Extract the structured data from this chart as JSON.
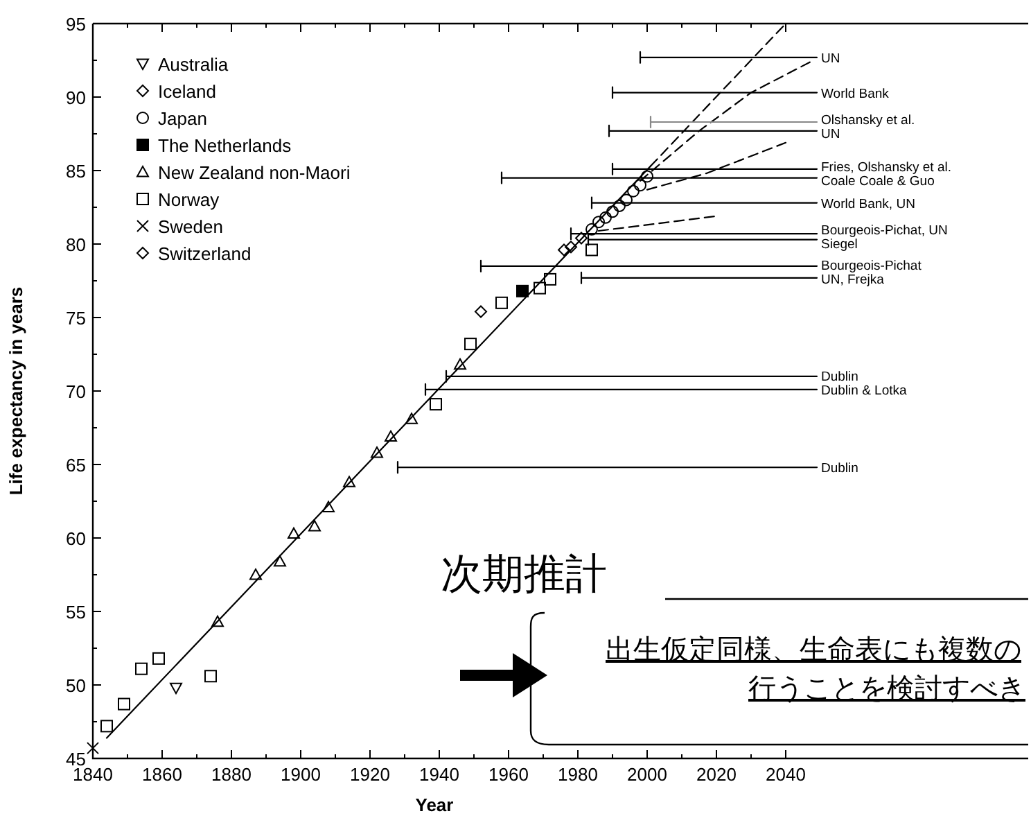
{
  "chart_data": {
    "type": "scatter",
    "xlabel": "Year",
    "ylabel": "Life expectancy in years",
    "xlim": [
      1840,
      2110
    ],
    "ylim": [
      45,
      95
    ],
    "xticks": [
      1840,
      {
        "value": 1850,
        "label": null
      },
      1860,
      {
        "value": 1870,
        "label": null
      },
      1880,
      {
        "value": 1890,
        "label": null
      },
      1900,
      {
        "value": 1910,
        "label": null
      },
      1920,
      {
        "value": 1930,
        "label": null
      },
      1940,
      {
        "value": 1950,
        "label": null
      },
      1960,
      {
        "value": 1970,
        "label": null
      },
      1980,
      {
        "value": 1990,
        "label": null
      },
      2000,
      {
        "value": 2010,
        "label": null
      },
      2020,
      {
        "value": 2030,
        "label": null
      },
      2040
    ],
    "yticks": [
      45,
      {
        "value": 47.5,
        "label": null
      },
      50,
      {
        "value": 52.5,
        "label": null
      },
      55,
      {
        "value": 57.5,
        "label": null
      },
      60,
      {
        "value": 62.5,
        "label": null
      },
      65,
      {
        "value": 67.5,
        "label": null
      },
      70,
      {
        "value": 72.5,
        "label": null
      },
      75,
      {
        "value": 77.5,
        "label": null
      },
      80,
      {
        "value": 82.5,
        "label": null
      },
      85,
      {
        "value": 87.5,
        "label": null
      },
      90,
      {
        "value": 92.5,
        "label": null
      },
      95
    ],
    "grid": false,
    "legend": "top left",
    "series": [
      {
        "name": "Australia",
        "marker": "triangle-down",
        "color": "#000000",
        "x": [
          1864
        ],
        "values": [
          49.8
        ]
      },
      {
        "name": "Iceland",
        "marker": "diamond",
        "color": "#000000",
        "x": [
          1952,
          1978
        ],
        "values": [
          75.4,
          79.8
        ]
      },
      {
        "name": "Japan",
        "marker": "circle",
        "color": "#000000",
        "x": [
          1984,
          1986,
          1988,
          1990,
          1992,
          1994,
          1996,
          1998,
          2000
        ],
        "values": [
          81.0,
          81.5,
          81.8,
          82.2,
          82.6,
          83.0,
          83.6,
          84.0,
          84.6
        ]
      },
      {
        "name": "The Netherlands",
        "marker": "square-filled",
        "color": "#000000",
        "x": [
          1964
        ],
        "values": [
          76.8
        ]
      },
      {
        "name": "New Zealand non-Maori",
        "marker": "triangle",
        "color": "#000000",
        "x": [
          1876,
          1887,
          1894,
          1898,
          1904,
          1908,
          1914,
          1922,
          1926,
          1932,
          1946
        ],
        "values": [
          54.3,
          57.5,
          58.4,
          60.3,
          60.8,
          62.1,
          63.8,
          65.8,
          66.9,
          68.1,
          71.8
        ]
      },
      {
        "name": "Norway",
        "marker": "square",
        "color": "#000000",
        "x": [
          1844,
          1849,
          1854,
          1859,
          1874,
          1939,
          1949,
          1958,
          1969,
          1972,
          1984
        ],
        "values": [
          47.2,
          48.7,
          51.1,
          51.8,
          50.6,
          69.1,
          73.2,
          76.0,
          77.0,
          77.6,
          79.6
        ]
      },
      {
        "name": "Sweden",
        "marker": "cross",
        "color": "#000000",
        "x": [
          1840
        ],
        "values": [
          45.7
        ]
      },
      {
        "name": "Switzerland",
        "marker": "diamond",
        "color": "#000000",
        "x": [
          1976,
          1981
        ],
        "values": [
          79.6,
          80.4
        ]
      },
      {
        "type": "line",
        "marker": "none",
        "line_style": "solid",
        "color": "#000000",
        "x": [
          1844,
          2001
        ],
        "values": [
          46.4,
          85.3
        ]
      },
      {
        "type": "line",
        "marker": "none",
        "line_style": "dashed",
        "color": "#000000",
        "x": [
          2001,
          2040
        ],
        "values": [
          85.3,
          95
        ]
      },
      {
        "type": "line",
        "marker": "none",
        "line_style": "dashed",
        "color": "#000000",
        "x": [
          1998,
          2015,
          2030,
          2048
        ],
        "values": [
          84.3,
          87.7,
          90.3,
          92.5
        ]
      },
      {
        "type": "line",
        "marker": "none",
        "line_style": "dashed",
        "color": "#000000",
        "x": [
          2000,
          2017,
          2040
        ],
        "values": [
          83.7,
          84.8,
          86.9
        ]
      },
      {
        "type": "line",
        "marker": "none",
        "line_style": "dashed",
        "color": "#000000",
        "x": [
          1986,
          2020
        ],
        "values": [
          80.9,
          81.9
        ]
      },
      {
        "name": "UN",
        "type": "line",
        "marker": "none",
        "line_style": "solid",
        "color": "#000000",
        "x": [
          1998,
          2049
        ],
        "values": [
          92.7,
          92.7
        ]
      },
      {
        "name": "World Bank",
        "type": "line",
        "marker": "none",
        "line_style": "solid",
        "color": "#000000",
        "x": [
          1990,
          2049
        ],
        "values": [
          90.3,
          90.3
        ]
      },
      {
        "name": "Olshansky et al.",
        "type": "line",
        "marker": "none",
        "line_style": "solid",
        "color": "#888888",
        "x": [
          2001,
          2049
        ],
        "values": [
          88.3,
          88.3
        ]
      },
      {
        "name": "UN",
        "type": "line",
        "marker": "none",
        "line_style": "solid",
        "color": "#000000",
        "x": [
          1989,
          2049
        ],
        "values": [
          87.7,
          87.7
        ]
      },
      {
        "name": "Fries, Olshansky et al.",
        "type": "line",
        "marker": "none",
        "line_style": "solid",
        "color": "#000000",
        "x": [
          1990,
          2049
        ],
        "values": [
          85.1,
          85.1
        ]
      },
      {
        "name": "Coale   Coale & Guo",
        "type": "line",
        "marker": "none",
        "line_style": "solid",
        "color": "#000000",
        "x": [
          1958,
          2049
        ],
        "values": [
          84.5,
          84.5
        ]
      },
      {
        "name": "World Bank, UN",
        "type": "line",
        "marker": "none",
        "line_style": "solid",
        "color": "#000000",
        "x": [
          1984,
          2049
        ],
        "values": [
          82.8,
          82.8
        ]
      },
      {
        "name": "Bourgeois-Pichat, UN",
        "type": "line",
        "marker": "none",
        "line_style": "solid",
        "color": "#000000",
        "x": [
          1978,
          2049
        ],
        "values": [
          80.7,
          80.7
        ]
      },
      {
        "name": "Siegel",
        "type": "line",
        "marker": "none",
        "line_style": "solid",
        "color": "#000000",
        "x": [
          1983,
          2049
        ],
        "values": [
          80.3,
          80.3
        ]
      },
      {
        "name": "Bourgeois-Pichat",
        "type": "line",
        "marker": "none",
        "line_style": "solid",
        "color": "#000000",
        "x": [
          1952,
          2049
        ],
        "values": [
          78.5,
          78.5
        ]
      },
      {
        "name": "UN, Frejka",
        "type": "line",
        "marker": "none",
        "line_style": "solid",
        "color": "#000000",
        "x": [
          1981,
          2049
        ],
        "values": [
          77.7,
          77.7
        ]
      },
      {
        "name": "Dublin",
        "type": "line",
        "marker": "none",
        "line_style": "solid",
        "color": "#000000",
        "x": [
          1942,
          2049
        ],
        "values": [
          71.0,
          71.0
        ]
      },
      {
        "name": "Dublin & Lotka",
        "type": "line",
        "marker": "none",
        "line_style": "solid",
        "color": "#000000",
        "x": [
          1936,
          2049
        ],
        "values": [
          70.1,
          70.1
        ]
      },
      {
        "name": "Dublin",
        "type": "line",
        "marker": "none",
        "line_style": "solid",
        "color": "#000000",
        "x": [
          1928,
          2049
        ],
        "values": [
          64.8,
          64.8
        ]
      }
    ],
    "annotations": [
      "次期推計",
      "出生仮定同様、生命表にも複数の",
      "行うことを検討すべき"
    ]
  }
}
